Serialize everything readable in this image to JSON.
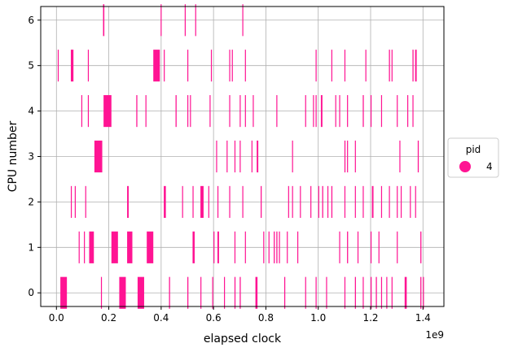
{
  "chart_data": {
    "type": "event-timeline",
    "xlabel": "elapsed clock",
    "ylabel": "CPU number",
    "x_offset_label": "1e9",
    "xlim": [
      -60000000.0,
      1480000000.0
    ],
    "ylim": [
      -0.3,
      6.3
    ],
    "xticks": [
      0,
      200000000,
      400000000,
      600000000,
      800000000,
      1000000000,
      1200000000,
      1400000000
    ],
    "xtick_labels": [
      "0.0",
      "0.2",
      "0.4",
      "0.6",
      "0.8",
      "1.0",
      "1.2",
      "1.4"
    ],
    "yticks": [
      0,
      1,
      2,
      3,
      4,
      5,
      6
    ],
    "ytick_labels": [
      "0",
      "1",
      "2",
      "3",
      "4",
      "5",
      "6"
    ],
    "grid": true,
    "legend": {
      "title": "pid",
      "placement": "right",
      "entries": [
        {
          "label": "4",
          "color": "#ff1493"
        }
      ]
    },
    "color": "#ff1493",
    "events": [
      {
        "cpu": 6,
        "times": [
          178000000.0,
          398000000.0,
          490000000.0,
          530000000.0,
          710000000.0
        ],
        "durations": [
          5000000.0,
          3000000.0,
          2000000.0,
          2000000.0,
          2000000.0
        ]
      },
      {
        "cpu": 5,
        "times": [
          5000000.0,
          55000000.0,
          120000000.0,
          370000000.0,
          410000000.0,
          500000000.0,
          590000000.0,
          660000000.0,
          670000000.0,
          720000000.0,
          990000000.0,
          1050000000.0,
          1100000000.0,
          1180000000.0,
          1270000000.0,
          1280000000.0,
          1360000000.0,
          1370000000.0
        ],
        "durations": [
          2000000.0,
          10000000.0,
          2000000.0,
          25000000.0,
          2000000.0,
          2000000.0,
          2000000.0,
          2000000.0,
          2000000.0,
          2000000.0,
          2000000.0,
          2000000.0,
          2000000.0,
          2000000.0,
          4000000.0,
          2000000.0,
          4000000.0,
          6000000.0
        ]
      },
      {
        "cpu": 4,
        "times": [
          95000000.0,
          120000000.0,
          180000000.0,
          305000000.0,
          340000000.0,
          455000000.0,
          500000000.0,
          510000000.0,
          585000000.0,
          660000000.0,
          700000000.0,
          720000000.0,
          750000000.0,
          840000000.0,
          950000000.0,
          980000000.0,
          990000000.0,
          1010000000.0,
          1065000000.0,
          1080000000.0,
          1110000000.0,
          1170000000.0,
          1200000000.0,
          1240000000.0,
          1300000000.0,
          1340000000.0,
          1360000000.0
        ],
        "durations": [
          2000000.0,
          2000000.0,
          30000000.0,
          4000000.0,
          2000000.0,
          4000000.0,
          2000000.0,
          2000000.0,
          2000000.0,
          2000000.0,
          2000000.0,
          2000000.0,
          2000000.0,
          2000000.0,
          2000000.0,
          2000000.0,
          2000000.0,
          6000000.0,
          2000000.0,
          2000000.0,
          2000000.0,
          4000000.0,
          2000000.0,
          2000000.0,
          2000000.0,
          2000000.0,
          2000000.0
        ]
      },
      {
        "cpu": 3,
        "times": [
          145000000.0,
          610000000.0,
          650000000.0,
          680000000.0,
          700000000.0,
          745000000.0,
          765000000.0,
          900000000.0,
          1100000000.0,
          1110000000.0,
          1140000000.0,
          1310000000.0,
          1380000000.0
        ],
        "durations": [
          30000000.0,
          2000000.0,
          2000000.0,
          2000000.0,
          2000000.0,
          2000000.0,
          6000000.0,
          2000000.0,
          4000000.0,
          2000000.0,
          2000000.0,
          2000000.0,
          4000000.0
        ]
      },
      {
        "cpu": 2,
        "times": [
          55000000.0,
          70000000.0,
          110000000.0,
          270000000.0,
          410000000.0,
          480000000.0,
          520000000.0,
          550000000.0,
          580000000.0,
          615000000.0,
          660000000.0,
          710000000.0,
          780000000.0,
          885000000.0,
          900000000.0,
          930000000.0,
          970000000.0,
          1000000000.0,
          1015000000.0,
          1035000000.0,
          1050000000.0,
          1100000000.0,
          1140000000.0,
          1170000000.0,
          1205000000.0,
          1240000000.0,
          1270000000.0,
          1300000000.0,
          1315000000.0,
          1350000000.0,
          1370000000.0
        ],
        "durations": [
          2000000.0,
          2000000.0,
          2000000.0,
          6000000.0,
          8000000.0,
          2000000.0,
          2000000.0,
          12000000.0,
          2000000.0,
          2000000.0,
          2000000.0,
          2000000.0,
          4000000.0,
          2000000.0,
          2000000.0,
          2000000.0,
          2000000.0,
          2000000.0,
          4000000.0,
          2000000.0,
          4000000.0,
          2000000.0,
          2000000.0,
          2000000.0,
          6000000.0,
          2000000.0,
          2000000.0,
          2000000.0,
          2000000.0,
          2000000.0,
          2000000.0
        ]
      },
      {
        "cpu": 1,
        "times": [
          85000000.0,
          105000000.0,
          125000000.0,
          210000000.0,
          270000000.0,
          345000000.0,
          520000000.0,
          600000000.0,
          615000000.0,
          680000000.0,
          720000000.0,
          790000000.0,
          810000000.0,
          830000000.0,
          840000000.0,
          850000000.0,
          880000000.0,
          920000000.0,
          1080000000.0,
          1110000000.0,
          1150000000.0,
          1200000000.0,
          1230000000.0,
          1300000000.0,
          1390000000.0
        ],
        "durations": [
          2000000.0,
          2000000.0,
          18000000.0,
          25000000.0,
          20000000.0,
          25000000.0,
          8000000.0,
          2000000.0,
          6000000.0,
          2000000.0,
          2000000.0,
          2000000.0,
          2000000.0,
          4000000.0,
          4000000.0,
          2000000.0,
          2000000.0,
          2000000.0,
          2000000.0,
          4000000.0,
          2000000.0,
          2000000.0,
          2000000.0,
          2000000.0,
          4000000.0
        ]
      },
      {
        "cpu": 0,
        "times": [
          15000000.0,
          170000000.0,
          240000000.0,
          310000000.0,
          430000000.0,
          500000000.0,
          550000000.0,
          595000000.0,
          640000000.0,
          680000000.0,
          700000000.0,
          760000000.0,
          870000000.0,
          950000000.0,
          990000000.0,
          1030000000.0,
          1100000000.0,
          1140000000.0,
          1170000000.0,
          1200000000.0,
          1220000000.0,
          1240000000.0,
          1260000000.0,
          1280000000.0,
          1330000000.0,
          1390000000.0,
          1400000000.0
        ],
        "durations": [
          25000000.0,
          2000000.0,
          25000000.0,
          25000000.0,
          4000000.0,
          4000000.0,
          2000000.0,
          2000000.0,
          2000000.0,
          4000000.0,
          4000000.0,
          8000000.0,
          4000000.0,
          2000000.0,
          2000000.0,
          2000000.0,
          2000000.0,
          4000000.0,
          2000000.0,
          4000000.0,
          4000000.0,
          2000000.0,
          2000000.0,
          2000000.0,
          8000000.0,
          4000000.0,
          2000000.0
        ]
      }
    ]
  }
}
